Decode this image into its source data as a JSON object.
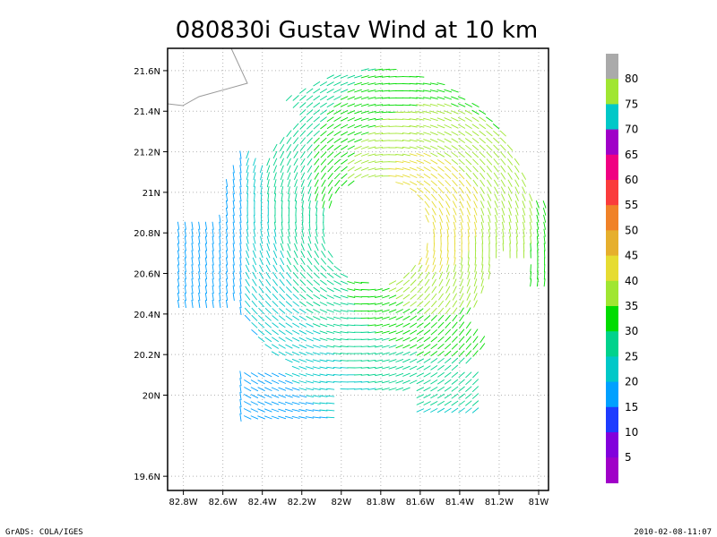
{
  "chart_data": {
    "type": "vector-field",
    "title": "080830i Gustav Wind at 10 km",
    "xlabel": "",
    "ylabel": "",
    "x_ticks": [
      "82.8W",
      "82.6W",
      "82.4W",
      "82.2W",
      "82W",
      "81.8W",
      "81.6W",
      "81.4W",
      "81.2W",
      "81W"
    ],
    "y_ticks": [
      "21.6N",
      "21.4N",
      "21.2N",
      "21N",
      "20.8N",
      "20.6N",
      "20.4N",
      "20.2N",
      "20N",
      "19.6N"
    ],
    "xlim": [
      -82.88,
      -80.95
    ],
    "ylim": [
      19.53,
      21.71
    ],
    "grid": true,
    "storm_center": {
      "lon": -81.82,
      "lat": 20.81
    },
    "eye_radius_deg": 0.26,
    "outer_radius_deg": 0.8,
    "colorbar": {
      "levels": [
        5,
        10,
        15,
        20,
        25,
        30,
        35,
        40,
        45,
        50,
        55,
        60,
        65,
        70,
        75,
        80
      ],
      "colors": [
        "#a000c8",
        "#8200dc",
        "#1e3cff",
        "#00a0ff",
        "#00c8c8",
        "#00d28c",
        "#00dc00",
        "#a0e632",
        "#e6dc32",
        "#e6af2d",
        "#f08228",
        "#fa3c3c",
        "#f00082",
        "#a000c8",
        "#00c8c8",
        "#a0e632",
        "#aaaaaa"
      ]
    },
    "speed_range_mps": [
      18,
      48
    ]
  },
  "footer": {
    "left": "GrADS: COLA/IGES",
    "right": "2010-02-08-11:07"
  }
}
